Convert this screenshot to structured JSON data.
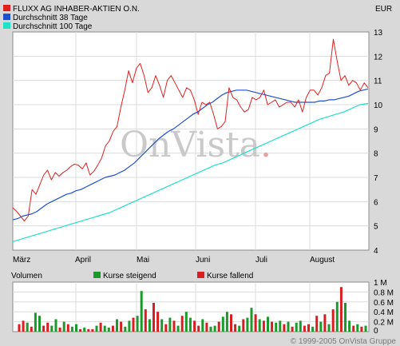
{
  "header": {
    "legend": [
      {
        "label": "FLUXX AG INHABER-AKTIEN O.N.",
        "color": "#e0201e"
      },
      {
        "label": "Durchschnitt 38 Tage",
        "color": "#1e50d0"
      },
      {
        "label": "Durchschnitt 100 Tage",
        "color": "#20e0c8"
      }
    ],
    "currency": "EUR"
  },
  "watermark": {
    "main": "OnVista",
    "dot": "."
  },
  "volume_header": {
    "title": "Volumen",
    "rising": {
      "label": "Kurse steigend",
      "color": "#1a9a2a"
    },
    "falling": {
      "label": "Kurse fallend",
      "color": "#d81e1e"
    }
  },
  "copyright": "© 1999-2005 OnVista Gruppe",
  "chart_data": [
    {
      "type": "line",
      "x_labels": [
        "März",
        "April",
        "Mai",
        "Juni",
        "Juli",
        "August"
      ],
      "ylim": [
        4,
        13
      ],
      "y_ticks": [
        "4",
        "5",
        "6",
        "7",
        "8",
        "9",
        "10",
        "11",
        "12",
        "13"
      ],
      "grid": true,
      "series": [
        {
          "name": "FLUXX AG INHABER-AKTIEN O.N.",
          "color": "#e0201e",
          "values": [
            5.75,
            5.6,
            5.4,
            5.2,
            5.4,
            6.5,
            6.3,
            6.7,
            7.1,
            7.3,
            6.9,
            7.2,
            7.05,
            7.2,
            7.3,
            7.45,
            7.55,
            7.5,
            7.35,
            7.6,
            7.1,
            7.25,
            7.5,
            7.8,
            8.3,
            8.5,
            8.9,
            9.1,
            9.9,
            10.6,
            11.4,
            10.9,
            11.5,
            11.7,
            11.2,
            10.5,
            10.7,
            11.2,
            10.8,
            10.3,
            11.0,
            11.2,
            10.9,
            10.6,
            10.3,
            10.7,
            10.6,
            10.2,
            9.6,
            10.1,
            10.0,
            10.1,
            9.6,
            9.0,
            9.1,
            9.3,
            10.7,
            10.3,
            10.2,
            9.9,
            9.7,
            9.8,
            10.3,
            10.2,
            10.3,
            10.6,
            10.0,
            10.1,
            10.2,
            9.9,
            10.0,
            10.1,
            10.1,
            9.9,
            10.2,
            9.7,
            10.3,
            10.6,
            10.6,
            10.4,
            10.7,
            11.2,
            11.3,
            12.7,
            11.8,
            11.0,
            11.2,
            10.8,
            11.0,
            10.9,
            10.6,
            10.9,
            10.7
          ]
        },
        {
          "name": "Durchschnitt 38 Tage",
          "color": "#1e50d0",
          "values": [
            5.25,
            5.3,
            5.4,
            5.45,
            5.5,
            5.6,
            5.75,
            5.9,
            6.0,
            6.1,
            6.2,
            6.3,
            6.35,
            6.45,
            6.5,
            6.6,
            6.7,
            6.8,
            6.9,
            7.0,
            7.05,
            7.1,
            7.2,
            7.3,
            7.45,
            7.6,
            7.8,
            8.0,
            8.2,
            8.4,
            8.6,
            8.75,
            8.9,
            9.0,
            9.15,
            9.3,
            9.45,
            9.6,
            9.7,
            9.85,
            10.0,
            10.1,
            10.25,
            10.4,
            10.5,
            10.55,
            10.6,
            10.6,
            10.6,
            10.55,
            10.5,
            10.45,
            10.4,
            10.35,
            10.3,
            10.25,
            10.2,
            10.15,
            10.1,
            10.1,
            10.1,
            10.1,
            10.1,
            10.15,
            10.15,
            10.2,
            10.2,
            10.25,
            10.3,
            10.35,
            10.45,
            10.55,
            10.6,
            10.65
          ]
        },
        {
          "name": "Durchschnitt 100 Tage",
          "color": "#20e0c8",
          "values": [
            4.35,
            4.45,
            4.55,
            4.65,
            4.75,
            4.85,
            4.95,
            5.05,
            5.15,
            5.25,
            5.35,
            5.45,
            5.55,
            5.7,
            5.85,
            6.0,
            6.15,
            6.3,
            6.45,
            6.6,
            6.75,
            6.9,
            7.05,
            7.2,
            7.35,
            7.5,
            7.6,
            7.75,
            7.9,
            8.05,
            8.2,
            8.35,
            8.5,
            8.65,
            8.8,
            8.95,
            9.1,
            9.25,
            9.4,
            9.5,
            9.6,
            9.7,
            9.85,
            10.0,
            10.05
          ]
        }
      ]
    },
    {
      "type": "bar",
      "title": "Volumen",
      "ylim": [
        0,
        1.0
      ],
      "y_ticks": [
        "0",
        "0.2 M",
        "0.4 M",
        "0.6 M",
        "0.8 M",
        "1 M"
      ],
      "unit": "M",
      "values": [
        0.15,
        0.22,
        0.18,
        0.1,
        0.38,
        0.32,
        0.12,
        0.18,
        0.12,
        0.25,
        0.08,
        0.2,
        0.15,
        0.1,
        0.15,
        0.05,
        0.08,
        0.05,
        0.05,
        0.12,
        0.18,
        0.12,
        0.08,
        0.12,
        0.25,
        0.2,
        0.1,
        0.22,
        0.28,
        0.32,
        0.82,
        0.45,
        0.25,
        0.58,
        0.4,
        0.25,
        0.15,
        0.28,
        0.22,
        0.12,
        0.32,
        0.4,
        0.28,
        0.22,
        0.12,
        0.25,
        0.18,
        0.1,
        0.12,
        0.2,
        0.3,
        0.4,
        0.35,
        0.15,
        0.12,
        0.25,
        0.28,
        0.48,
        0.35,
        0.25,
        0.22,
        0.3,
        0.2,
        0.18,
        0.22,
        0.15,
        0.2,
        0.1,
        0.18,
        0.22,
        0.12,
        0.15,
        0.1,
        0.32,
        0.2,
        0.35,
        0.15,
        0.45,
        0.6,
        0.9,
        0.58,
        0.22,
        0.12,
        0.15,
        0.1,
        0.12
      ],
      "direction": [
        "d",
        "d",
        "u",
        "d",
        "u",
        "u",
        "d",
        "d",
        "u",
        "u",
        "d",
        "u",
        "d",
        "u",
        "u",
        "d",
        "u",
        "d",
        "d",
        "u",
        "d",
        "u",
        "u",
        "d",
        "u",
        "d",
        "u",
        "u",
        "d",
        "u",
        "u",
        "d",
        "u",
        "d",
        "d",
        "u",
        "d",
        "u",
        "d",
        "u",
        "d",
        "u",
        "u",
        "d",
        "d",
        "u",
        "d",
        "u",
        "u",
        "d",
        "u",
        "u",
        "d",
        "d",
        "u",
        "d",
        "u",
        "u",
        "d",
        "u",
        "d",
        "u",
        "d",
        "u",
        "u",
        "d",
        "u",
        "d",
        "u",
        "u",
        "d",
        "d",
        "u",
        "d",
        "u",
        "d",
        "u",
        "d",
        "u",
        "d",
        "u",
        "u",
        "d",
        "u",
        "d",
        "u"
      ]
    }
  ]
}
